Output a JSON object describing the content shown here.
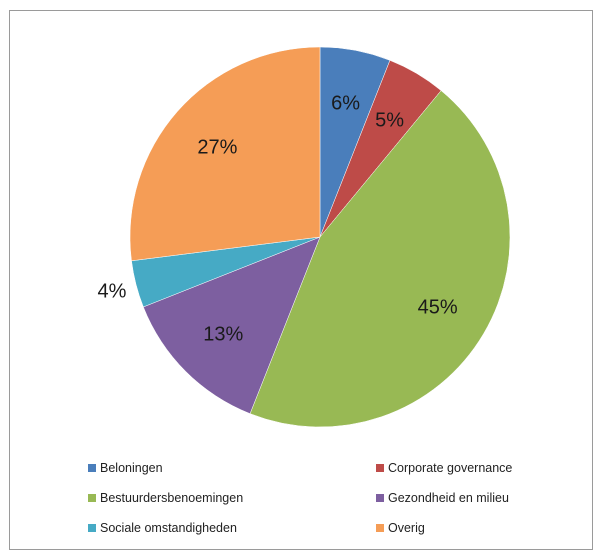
{
  "chart_data": {
    "type": "pie",
    "title": "",
    "slices": [
      {
        "name": "Beloningen",
        "value": 6,
        "label": "6%",
        "color": "#4a7ebb"
      },
      {
        "name": "Corporate governance",
        "value": 5,
        "label": "5%",
        "color": "#be4b48"
      },
      {
        "name": "Bestuurdersbenoemingen",
        "value": 45,
        "label": "45%",
        "color": "#98b954"
      },
      {
        "name": "Gezondheid en milieu",
        "value": 13,
        "label": "13%",
        "color": "#7d5fa0"
      },
      {
        "name": "Sociale omstandigheden",
        "value": 4,
        "label": "4%",
        "color": "#46aac5"
      },
      {
        "name": "Overig",
        "value": 27,
        "label": "27%",
        "color": "#f59d56"
      }
    ],
    "start_angle": "12 o'clock",
    "direction": "clockwise",
    "legend_position": "bottom"
  }
}
